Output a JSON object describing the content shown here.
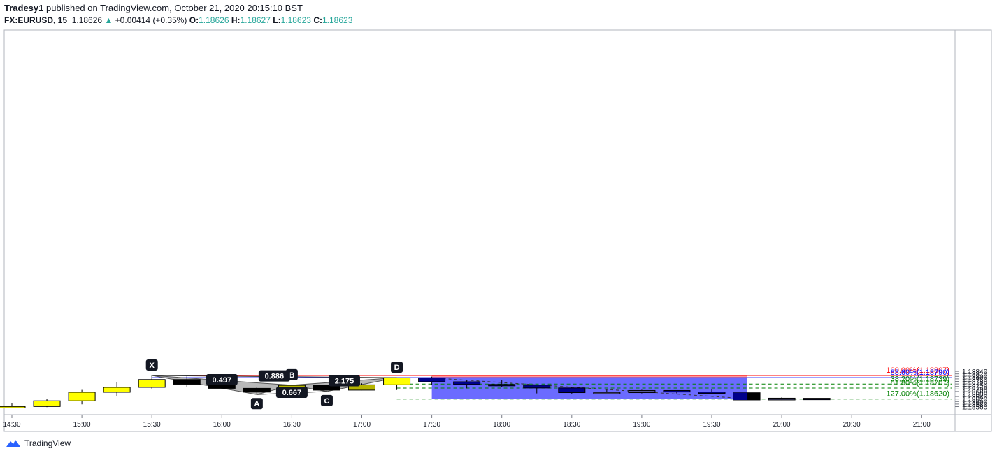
{
  "header": {
    "publisher": "Tradesy1",
    "published_text": "published on TradingView.com, October 21, 2020 20:15:10 BST",
    "symbol": "FX:EURUSD, 15",
    "last": "1.18626",
    "change_arrow": "▲",
    "change": "+0.00414 (+0.35%)",
    "o_label": "O:",
    "o_value": "1.18626",
    "h_label": "H:",
    "h_value": "1.18627",
    "l_label": "L:",
    "l_value": "1.18623",
    "c_label": "C:",
    "c_value": "1.18623"
  },
  "footer": {
    "brand": "TradingView",
    "logo_icon": "tradingview-logo-icon"
  },
  "colors": {
    "bull": "#ffff00",
    "bear": "#000000",
    "pattern_bull": "#b5b400",
    "short_bull": "#5a5a9a",
    "short_bear": "#00008b",
    "stop_zone": "#ff9a9a",
    "target_zone": "#6b6bff",
    "fib_red": "#ff0000",
    "fib_blue": "#0000ff",
    "fib_green": "#008000",
    "harmonic_fill": "#b0b0b0"
  },
  "chart_data": {
    "type": "candlestick",
    "ylim": [
      1.18545,
      1.18855
    ],
    "y_ticks": [
      "1.18560",
      "1.18580",
      "1.18600",
      "1.18620",
      "1.18640",
      "1.18660",
      "1.18680",
      "1.18700",
      "1.18720",
      "1.18740",
      "1.18760",
      "1.18780",
      "1.18800",
      "1.18820",
      "1.18840"
    ],
    "x_ticks": [
      "14:30",
      "15:00",
      "15:30",
      "16:00",
      "16:30",
      "17:00",
      "17:30",
      "18:00",
      "18:30",
      "19:00",
      "19:30",
      "20:00",
      "20:30",
      "21:00"
    ],
    "candles": [
      {
        "time": "14:30",
        "o": 1.18552,
        "h": 1.18589,
        "l": 1.18551,
        "c": 1.18561
      },
      {
        "time": "14:45",
        "o": 1.18561,
        "h": 1.18623,
        "l": 1.18556,
        "c": 1.18606
      },
      {
        "time": "15:00",
        "o": 1.18606,
        "h": 1.18693,
        "l": 1.18578,
        "c": 1.18674
      },
      {
        "time": "15:15",
        "o": 1.18674,
        "h": 1.18755,
        "l": 1.18645,
        "c": 1.18713
      },
      {
        "time": "15:30",
        "o": 1.18713,
        "h": 1.18807,
        "l": 1.18702,
        "c": 1.18775
      },
      {
        "time": "15:45",
        "o": 1.18775,
        "h": 1.188,
        "l": 1.18713,
        "c": 1.18738
      },
      {
        "time": "16:00",
        "o": 1.18738,
        "h": 1.1878,
        "l": 1.18697,
        "c": 1.18705
      },
      {
        "time": "16:15",
        "o": 1.18705,
        "h": 1.18715,
        "l": 1.18656,
        "c": 1.18675
      },
      {
        "time": "16:30",
        "o": 1.18675,
        "h": 1.1873,
        "l": 1.18672,
        "c": 1.18729
      },
      {
        "time": "16:45",
        "o": 1.18729,
        "h": 1.18736,
        "l": 1.1868,
        "c": 1.18691
      },
      {
        "time": "17:00",
        "o": 1.18691,
        "h": 1.18745,
        "l": 1.1869,
        "c": 1.18733
      },
      {
        "time": "17:15",
        "o": 1.18733,
        "h": 1.1879,
        "l": 1.18692,
        "c": 1.18788
      },
      {
        "time": "17:30",
        "o": 1.18788,
        "h": 1.18798,
        "l": 1.18731,
        "c": 1.18757
      },
      {
        "time": "17:45",
        "o": 1.18757,
        "h": 1.18774,
        "l": 1.18705,
        "c": 1.18736
      },
      {
        "time": "18:00",
        "o": 1.18736,
        "h": 1.1877,
        "l": 1.18713,
        "c": 1.18731
      },
      {
        "time": "18:15",
        "o": 1.18731,
        "h": 1.18731,
        "l": 1.18665,
        "c": 1.18708
      },
      {
        "time": "18:30",
        "o": 1.18708,
        "h": 1.18716,
        "l": 1.18663,
        "c": 1.18671
      },
      {
        "time": "18:45",
        "o": 1.18671,
        "h": 1.18694,
        "l": 1.18669,
        "c": 1.18673
      },
      {
        "time": "19:00",
        "o": 1.18671,
        "h": 1.18694,
        "l": 1.18665,
        "c": 1.18688
      },
      {
        "time": "19:15",
        "o": 1.18688,
        "h": 1.1869,
        "l": 1.18665,
        "c": 1.18676
      },
      {
        "time": "19:30",
        "o": 1.18676,
        "h": 1.18697,
        "l": 1.18658,
        "c": 1.1867
      },
      {
        "time": "19:45",
        "o": 1.1867,
        "h": 1.1867,
        "l": 1.18613,
        "c": 1.18613
      },
      {
        "time": "20:00",
        "o": 1.18613,
        "h": 1.18634,
        "l": 1.18611,
        "c": 1.18627
      },
      {
        "time": "20:15",
        "o": 1.18626,
        "h": 1.18627,
        "l": 1.18623,
        "c": 1.18623
      }
    ],
    "harmonic": {
      "points": [
        {
          "label": "X",
          "time": "15:30",
          "price": 1.18807
        },
        {
          "label": "A",
          "time": "16:15",
          "price": 1.18656
        },
        {
          "label": "B",
          "time": "16:30",
          "price": 1.1873
        },
        {
          "label": "C",
          "time": "16:45",
          "price": 1.1868
        },
        {
          "label": "D",
          "time": "17:15",
          "price": 1.1879
        }
      ],
      "ratios": [
        {
          "text": "0.886",
          "from": "X",
          "to": "D"
        },
        {
          "text": "0.497",
          "from": "X",
          "to": "B"
        },
        {
          "text": "0.667",
          "from": "A",
          "to": "C"
        },
        {
          "text": "2.175",
          "from": "B",
          "to": "D"
        }
      ]
    },
    "fib_levels": [
      {
        "label": "100.00%(1.18807)",
        "price": 1.18807,
        "color": "#ff0000",
        "style": "solid"
      },
      {
        "label": "88.60%(1.18790)",
        "price": 1.1879,
        "color": "#0000ff",
        "style": "solid"
      },
      {
        "label": "38.20%(1.18739)",
        "price": 1.18739,
        "color": "#008000",
        "style": "dashed"
      },
      {
        "label": "61.80%(1.18707)",
        "price": 1.18707,
        "color": "#008000",
        "style": "dashed"
      },
      {
        "label": "127.00%(1.18620)",
        "price": 1.1862,
        "color": "#008000",
        "style": "dashed"
      }
    ],
    "position": {
      "type": "short",
      "start": "17:30",
      "end": "19:45",
      "entry": 1.1879,
      "stop": 1.18807,
      "target": 1.1862
    },
    "trend_line": {
      "from_time": "17:30",
      "from_price": 1.18788,
      "to_time": "19:45",
      "to_price": 1.18623
    }
  }
}
